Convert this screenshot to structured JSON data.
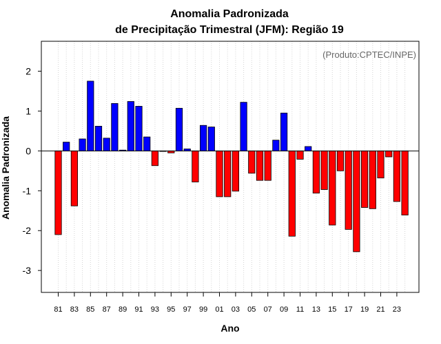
{
  "chart_data": {
    "type": "bar",
    "title_line1": "Anomalia Padronizada",
    "title_line2": "de Precipitação Trimestral (JFM): Região 19",
    "xlabel": "Ano",
    "ylabel": "Anomalia Padronizada",
    "credit": "(Produto:CPTEC/INPE)",
    "ylim": [
      -3.55,
      2.75
    ],
    "yticks": [
      -3,
      -2,
      -1,
      0,
      1,
      2
    ],
    "ytick_labels": [
      "-3",
      "-2",
      "-1",
      "0",
      "1",
      "2"
    ],
    "categories": [
      "81",
      "82",
      "83",
      "84",
      "85",
      "86",
      "87",
      "88",
      "89",
      "90",
      "91",
      "92",
      "93",
      "94",
      "95",
      "96",
      "97",
      "98",
      "99",
      "00",
      "01",
      "02",
      "03",
      "04",
      "05",
      "06",
      "07",
      "08",
      "09",
      "10",
      "11",
      "12",
      "13",
      "14",
      "15",
      "16",
      "17",
      "18",
      "19",
      "20",
      "21",
      "22",
      "23",
      "24"
    ],
    "xtick_labels": [
      "81",
      "83",
      "85",
      "87",
      "89",
      "91",
      "93",
      "95",
      "97",
      "99",
      "01",
      "03",
      "05",
      "07",
      "09",
      "11",
      "13",
      "15",
      "17",
      "19",
      "21",
      "23"
    ],
    "values": [
      -2.1,
      0.22,
      -1.38,
      0.3,
      1.75,
      0.62,
      0.32,
      1.19,
      0.02,
      1.24,
      1.12,
      0.35,
      -0.37,
      0.0,
      -0.05,
      1.07,
      0.05,
      -0.78,
      0.64,
      0.6,
      -1.15,
      -1.15,
      -1.01,
      1.22,
      -0.56,
      -0.74,
      -0.74,
      0.27,
      0.95,
      -2.14,
      -0.21,
      0.11,
      -1.06,
      -0.97,
      -1.86,
      -0.5,
      -1.97,
      -2.53,
      -1.42,
      -1.45,
      -0.68,
      -0.15,
      -1.27,
      -1.61
    ],
    "positive_color": "#0000ff",
    "negative_color": "#ff0000",
    "grid": true
  }
}
